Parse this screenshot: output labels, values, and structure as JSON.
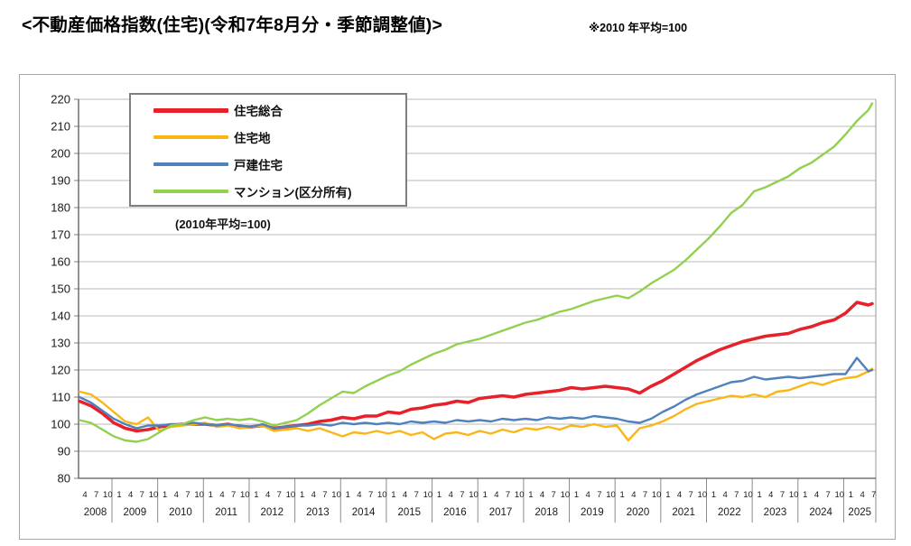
{
  "header": {
    "title": "<不動産価格指数(住宅)(令和7年8月分・季節調整値)>",
    "note": "※2010 年平均=100"
  },
  "chart_data": {
    "type": "line",
    "title": "不動産価格指数(住宅)(令和7年8月分・季節調整値)",
    "note": "(2010年平均=100)",
    "xlabel": "",
    "ylabel": "",
    "ylim": [
      80,
      220
    ],
    "y_ticks": [
      80,
      90,
      100,
      110,
      120,
      130,
      140,
      150,
      160,
      170,
      180,
      190,
      200,
      210,
      220
    ],
    "grid": "horizontal",
    "legend_position": "top-left-inside",
    "x_range": [
      "2008-04",
      "2025-08"
    ],
    "x_axis_years": [
      {
        "label": "2008",
        "months": [
          4,
          7,
          10
        ]
      },
      {
        "label": "2009",
        "months": [
          1,
          4,
          7,
          10
        ]
      },
      {
        "label": "2010",
        "months": [
          1,
          4,
          7,
          10
        ]
      },
      {
        "label": "2011",
        "months": [
          1,
          4,
          7,
          10
        ]
      },
      {
        "label": "2012",
        "months": [
          1,
          4,
          7,
          10
        ]
      },
      {
        "label": "2013",
        "months": [
          1,
          4,
          7,
          10
        ]
      },
      {
        "label": "2014",
        "months": [
          1,
          4,
          7,
          10
        ]
      },
      {
        "label": "2015",
        "months": [
          1,
          4,
          7,
          10
        ]
      },
      {
        "label": "2016",
        "months": [
          1,
          4,
          7,
          10
        ]
      },
      {
        "label": "2017",
        "months": [
          1,
          4,
          7,
          10
        ]
      },
      {
        "label": "2018",
        "months": [
          1,
          4,
          7,
          10
        ]
      },
      {
        "label": "2019",
        "months": [
          1,
          4,
          7,
          10
        ]
      },
      {
        "label": "2020",
        "months": [
          1,
          4,
          7,
          10
        ]
      },
      {
        "label": "2021",
        "months": [
          1,
          4,
          7,
          10
        ]
      },
      {
        "label": "2022",
        "months": [
          1,
          4,
          7,
          10
        ]
      },
      {
        "label": "2023",
        "months": [
          1,
          4,
          7,
          10
        ]
      },
      {
        "label": "2024",
        "months": [
          1,
          4,
          7,
          10
        ]
      },
      {
        "label": "2025",
        "months": [
          1,
          4,
          7
        ]
      }
    ],
    "x_dates": [
      "2008-04",
      "2008-07",
      "2008-10",
      "2009-01",
      "2009-04",
      "2009-07",
      "2009-10",
      "2010-01",
      "2010-04",
      "2010-07",
      "2010-10",
      "2011-01",
      "2011-04",
      "2011-07",
      "2011-10",
      "2012-01",
      "2012-04",
      "2012-07",
      "2012-10",
      "2013-01",
      "2013-04",
      "2013-07",
      "2013-10",
      "2014-01",
      "2014-04",
      "2014-07",
      "2014-10",
      "2015-01",
      "2015-04",
      "2015-07",
      "2015-10",
      "2016-01",
      "2016-04",
      "2016-07",
      "2016-10",
      "2017-01",
      "2017-04",
      "2017-07",
      "2017-10",
      "2018-01",
      "2018-04",
      "2018-07",
      "2018-10",
      "2019-01",
      "2019-04",
      "2019-07",
      "2019-10",
      "2020-01",
      "2020-04",
      "2020-07",
      "2020-10",
      "2021-01",
      "2021-04",
      "2021-07",
      "2021-10",
      "2022-01",
      "2022-04",
      "2022-07",
      "2022-10",
      "2023-01",
      "2023-04",
      "2023-07",
      "2023-10",
      "2024-01",
      "2024-04",
      "2024-07",
      "2024-10",
      "2025-01",
      "2025-04",
      "2025-07",
      "2025-08"
    ],
    "series": [
      {
        "name": "住宅総合",
        "color": "#e62129",
        "line_width": 3.5,
        "values": [
          108.5,
          106.8,
          104.0,
          100.5,
          98.5,
          97.5,
          98.0,
          99.0,
          99.5,
          100.0,
          100.0,
          100.0,
          99.5,
          100.0,
          99.0,
          99.0,
          99.5,
          98.5,
          99.0,
          99.5,
          100.0,
          101.0,
          101.5,
          102.5,
          102.0,
          103.0,
          103.0,
          104.5,
          104.0,
          105.5,
          106.0,
          107.0,
          107.5,
          108.5,
          108.0,
          109.5,
          110.0,
          110.5,
          110.0,
          111.0,
          111.5,
          112.0,
          112.5,
          113.5,
          113.0,
          113.5,
          114.0,
          113.5,
          113.0,
          111.5,
          114.0,
          116.0,
          118.5,
          121.0,
          123.5,
          125.5,
          127.5,
          129.0,
          130.5,
          131.5,
          132.5,
          133.0,
          133.5,
          135.0,
          136.0,
          137.5,
          138.5,
          141.0,
          145.0,
          144.0,
          144.5
        ]
      },
      {
        "name": "住宅地",
        "color": "#f9b616",
        "line_width": 2.4,
        "values": [
          112.0,
          111.0,
          108.0,
          104.5,
          101.0,
          100.0,
          102.5,
          97.5,
          99.0,
          99.5,
          100.0,
          100.5,
          99.0,
          99.5,
          98.5,
          99.0,
          99.5,
          97.5,
          98.0,
          98.5,
          97.5,
          98.5,
          97.0,
          95.5,
          97.0,
          96.5,
          97.5,
          96.5,
          97.5,
          96.0,
          97.0,
          94.5,
          96.5,
          97.0,
          96.0,
          97.5,
          96.5,
          98.0,
          97.0,
          98.5,
          98.0,
          99.0,
          98.0,
          99.5,
          99.0,
          100.0,
          99.0,
          99.5,
          94.0,
          98.5,
          99.5,
          101.0,
          103.0,
          105.5,
          107.5,
          108.5,
          109.5,
          110.5,
          110.0,
          111.0,
          110.0,
          112.0,
          112.5,
          114.0,
          115.5,
          114.5,
          116.0,
          117.0,
          117.5,
          119.5,
          120.5
        ]
      },
      {
        "name": "戸建住宅",
        "color": "#4f81bd",
        "line_width": 2.4,
        "values": [
          110.0,
          108.0,
          105.0,
          102.0,
          100.0,
          98.5,
          99.5,
          99.5,
          100.0,
          100.0,
          100.5,
          100.0,
          99.5,
          100.0,
          99.5,
          99.0,
          100.0,
          98.5,
          99.0,
          99.5,
          99.5,
          100.0,
          99.5,
          100.5,
          100.0,
          100.5,
          100.0,
          100.5,
          100.0,
          101.0,
          100.5,
          101.0,
          100.5,
          101.5,
          101.0,
          101.5,
          101.0,
          102.0,
          101.5,
          102.0,
          101.5,
          102.5,
          102.0,
          102.5,
          102.0,
          103.0,
          102.5,
          102.0,
          101.0,
          100.5,
          102.0,
          104.5,
          106.5,
          109.0,
          111.0,
          112.5,
          114.0,
          115.5,
          116.0,
          117.5,
          116.5,
          117.0,
          117.5,
          117.0,
          117.5,
          118.0,
          118.5,
          118.5,
          124.5,
          119.5,
          120.0
        ]
      },
      {
        "name": "マンション(区分所有)",
        "color": "#92d050",
        "line_width": 2.4,
        "values": [
          101.5,
          100.5,
          98.0,
          95.5,
          94.0,
          93.5,
          94.5,
          97.0,
          99.5,
          100.0,
          101.5,
          102.5,
          101.5,
          102.0,
          101.5,
          102.0,
          101.0,
          99.5,
          100.5,
          101.5,
          104.0,
          107.0,
          109.5,
          112.0,
          111.5,
          114.0,
          116.0,
          118.0,
          119.5,
          122.0,
          124.0,
          126.0,
          127.5,
          129.5,
          130.5,
          131.5,
          133.0,
          134.5,
          136.0,
          137.5,
          138.5,
          140.0,
          141.5,
          142.5,
          144.0,
          145.5,
          146.5,
          147.5,
          146.5,
          149.0,
          152.0,
          154.5,
          157.0,
          160.5,
          164.5,
          168.5,
          173.0,
          178.0,
          181.0,
          186.0,
          187.5,
          189.5,
          191.5,
          194.5,
          196.5,
          199.5,
          202.5,
          207.0,
          212.0,
          216.0,
          218.5
        ]
      }
    ]
  }
}
